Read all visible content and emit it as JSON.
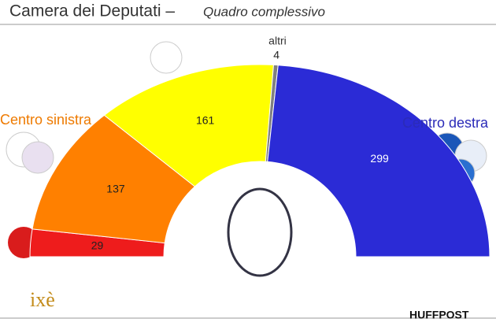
{
  "chart_data": {
    "type": "half-donut",
    "title": "Camera dei Deputati –",
    "subtitle": "Quadro complessivo",
    "categories": [
      null,
      null,
      null,
      "altri",
      null
    ],
    "values": [
      29,
      137,
      161,
      4,
      299
    ],
    "colors": [
      "#ee1c1c",
      "#ff8000",
      "#ffff00",
      "#808080",
      "#2b2bd6"
    ],
    "annotations": [
      "Centro sinistra",
      "Centro destra"
    ],
    "annotation_colors": [
      "#ee7a00",
      "#2b2bb8"
    ],
    "logos": [
      "ixè",
      "HUFFPOST"
    ]
  }
}
